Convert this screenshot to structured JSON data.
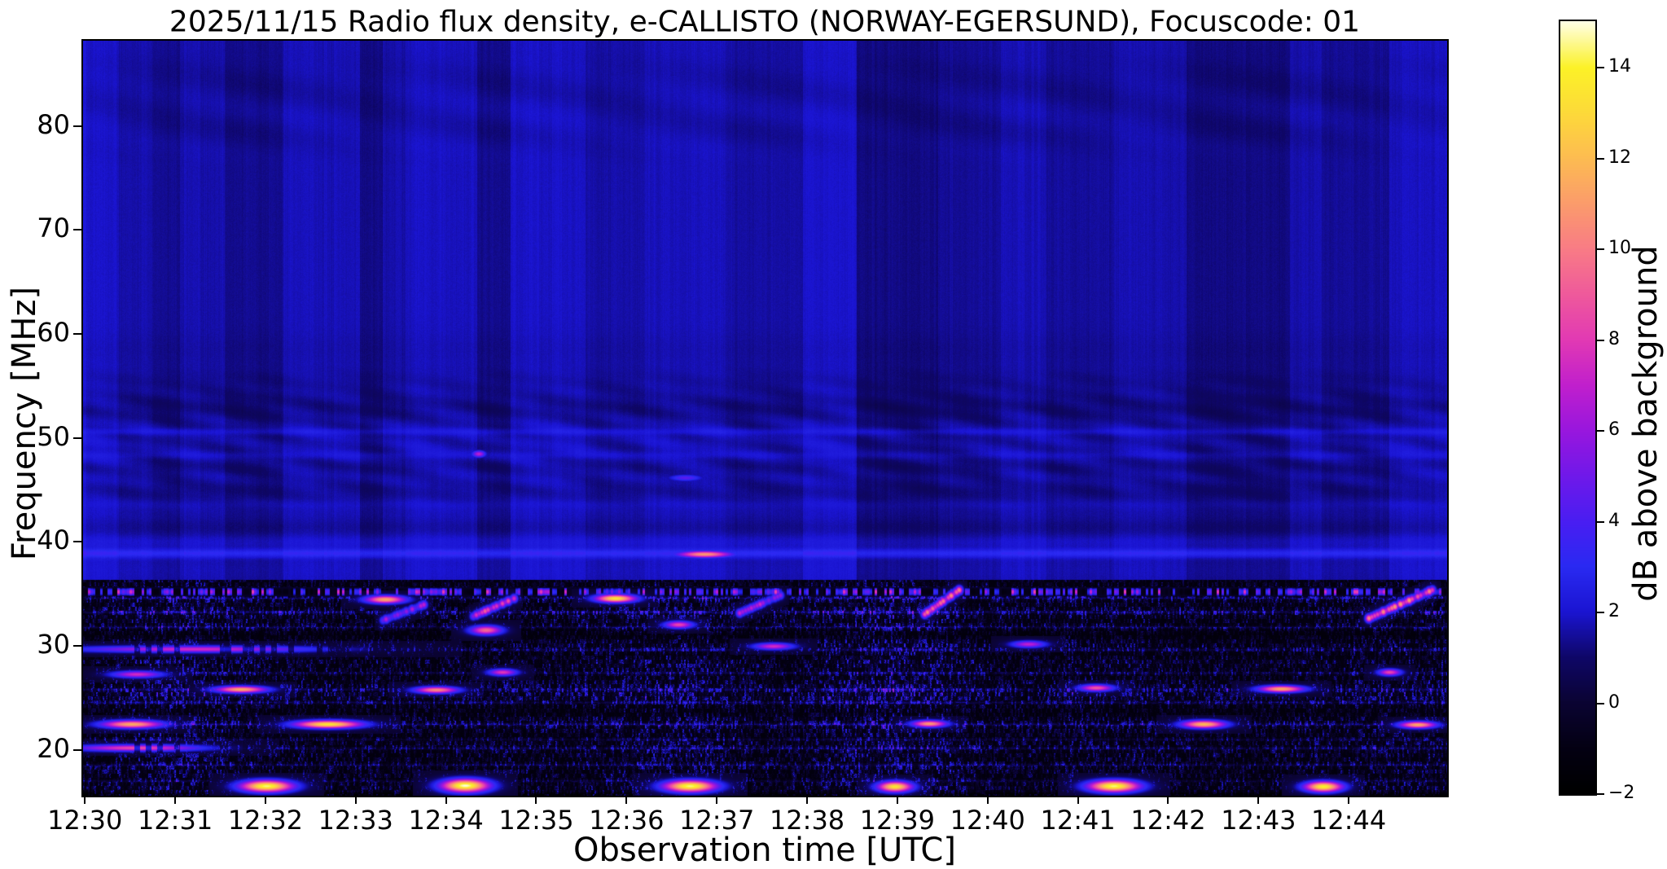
{
  "chart_data": {
    "type": "heatmap",
    "title": "2025/11/15  Radio flux density, e-CALLISTO (NORWAY-EGERSUND), Focuscode: 01",
    "xlabel": "Observation time [UTC]",
    "ylabel": "Frequency [MHz]",
    "colorbar_label": "dB above background",
    "x_start_label": "12:30",
    "x_range_minutes": [
      -0.02,
      15.09
    ],
    "x_ticks": [
      {
        "minute": 0,
        "label": "12:30"
      },
      {
        "minute": 1,
        "label": "12:31"
      },
      {
        "minute": 2,
        "label": "12:32"
      },
      {
        "minute": 3,
        "label": "12:33"
      },
      {
        "minute": 4,
        "label": "12:34"
      },
      {
        "minute": 5,
        "label": "12:35"
      },
      {
        "minute": 6,
        "label": "12:36"
      },
      {
        "minute": 7,
        "label": "12:37"
      },
      {
        "minute": 8,
        "label": "12:38"
      },
      {
        "minute": 9,
        "label": "12:39"
      },
      {
        "minute": 10,
        "label": "12:40"
      },
      {
        "minute": 11,
        "label": "12:41"
      },
      {
        "minute": 12,
        "label": "12:42"
      },
      {
        "minute": 13,
        "label": "12:43"
      },
      {
        "minute": 14,
        "label": "12:44"
      }
    ],
    "y_range_mhz": [
      15.6,
      88.2
    ],
    "y_ticks": [
      {
        "mhz": 80,
        "label": "80"
      },
      {
        "mhz": 70,
        "label": "70"
      },
      {
        "mhz": 60,
        "label": "60"
      },
      {
        "mhz": 50,
        "label": "50"
      },
      {
        "mhz": 40,
        "label": "40"
      },
      {
        "mhz": 30,
        "label": "30"
      },
      {
        "mhz": 20,
        "label": "20"
      }
    ],
    "colorbar_range": [
      -2,
      15.03
    ],
    "colorbar_ticks": [
      {
        "value": 14,
        "label": "14"
      },
      {
        "value": 12,
        "label": "12"
      },
      {
        "value": 10,
        "label": "10"
      },
      {
        "value": 8,
        "label": "8"
      },
      {
        "value": 6,
        "label": "6"
      },
      {
        "value": 4,
        "label": "4"
      },
      {
        "value": 2,
        "label": "2"
      },
      {
        "value": 0,
        "label": "0"
      },
      {
        "value": -2,
        "label": "−2"
      }
    ],
    "colormap_stops": [
      [
        -2,
        "#000000"
      ],
      [
        -1,
        "#040113"
      ],
      [
        0,
        "#0b0433"
      ],
      [
        1,
        "#0f0768"
      ],
      [
        2,
        "#1b15d2"
      ],
      [
        3,
        "#2a2af2"
      ],
      [
        4,
        "#4a1ef2"
      ],
      [
        5,
        "#7019ea"
      ],
      [
        6,
        "#9917de"
      ],
      [
        7,
        "#c120cd"
      ],
      [
        8,
        "#e23ab4"
      ],
      [
        9,
        "#ef5a9c"
      ],
      [
        10,
        "#f97c86"
      ],
      [
        11,
        "#fb9c6c"
      ],
      [
        12,
        "#fdbc52"
      ],
      [
        13,
        "#fdda3a"
      ],
      [
        14,
        "#fcf228"
      ],
      [
        15.03,
        "#ffffe8"
      ]
    ],
    "texture": {
      "upper_base_db": 1.85,
      "upper_lower_boundary_mhz": 36.35,
      "vertical_bands": [
        [
          -0.02,
          0.35,
          1.06
        ],
        [
          0.35,
          0.75,
          0.9
        ],
        [
          0.75,
          1.05,
          0.76
        ],
        [
          1.05,
          1.55,
          0.9
        ],
        [
          1.55,
          2.2,
          0.74
        ],
        [
          2.2,
          3.05,
          0.95
        ],
        [
          3.05,
          3.3,
          0.7
        ],
        [
          3.3,
          3.55,
          0.88
        ],
        [
          3.55,
          4.35,
          1.0
        ],
        [
          4.35,
          4.72,
          0.74
        ],
        [
          4.72,
          5.55,
          1.02
        ],
        [
          5.55,
          6.2,
          0.86
        ],
        [
          6.2,
          7.1,
          0.97
        ],
        [
          7.1,
          7.95,
          0.84
        ],
        [
          7.95,
          8.55,
          1.05
        ],
        [
          8.55,
          9.45,
          0.68
        ],
        [
          9.45,
          10.15,
          0.78
        ],
        [
          10.15,
          10.65,
          0.94
        ],
        [
          10.65,
          11.4,
          0.8
        ],
        [
          11.4,
          12.2,
          0.9
        ],
        [
          12.2,
          13.35,
          0.68
        ],
        [
          13.35,
          13.7,
          0.9
        ],
        [
          13.7,
          14.45,
          0.78
        ],
        [
          14.45,
          15.09,
          1.0
        ]
      ],
      "h_lines": [
        [
          38.9,
          0.3,
          1.5
        ],
        [
          40.0,
          0.45,
          0.38
        ],
        [
          41.4,
          0.6,
          -0.28
        ],
        [
          43.6,
          0.3,
          0.18
        ],
        [
          44.9,
          0.7,
          -0.3
        ],
        [
          47.2,
          0.5,
          -0.28
        ],
        [
          48.35,
          0.25,
          0.32
        ],
        [
          50.6,
          0.22,
          0.55
        ],
        [
          52.9,
          1.0,
          -0.42
        ],
        [
          55.5,
          0.8,
          -0.2
        ],
        [
          58.5,
          1.2,
          -0.12
        ],
        [
          37.3,
          0.8,
          0.15
        ],
        [
          84.0,
          1.8,
          -0.15
        ],
        [
          79.5,
          1.0,
          -0.1
        ]
      ],
      "chevron": {
        "f_min": 42.5,
        "f_max": 57.0,
        "amp": 0.34
      },
      "top_arcs": {
        "f_min": 76.0,
        "f_max": 87.0,
        "amp": 0.14
      },
      "dotted_line": {
        "f": 35.2,
        "halfwidth": 0.42
      },
      "row_activity": [
        [
          36.2,
          0.45
        ],
        [
          35.6,
          0.5
        ],
        [
          34.6,
          0.72
        ],
        [
          33.9,
          0.5
        ],
        [
          33.2,
          0.78
        ],
        [
          32.5,
          0.5
        ],
        [
          31.8,
          0.62
        ],
        [
          31.1,
          0.28
        ],
        [
          30.4,
          0.52
        ],
        [
          29.8,
          0.68
        ],
        [
          29.1,
          0.45
        ],
        [
          28.4,
          0.6
        ],
        [
          27.7,
          0.58
        ],
        [
          27.0,
          0.5
        ],
        [
          26.3,
          0.66
        ],
        [
          25.6,
          0.78
        ],
        [
          24.9,
          0.72
        ],
        [
          24.2,
          0.5
        ],
        [
          23.5,
          0.38
        ],
        [
          22.9,
          0.62
        ],
        [
          22.4,
          0.72
        ],
        [
          21.8,
          0.52
        ],
        [
          21.1,
          0.48
        ],
        [
          20.4,
          0.62
        ],
        [
          19.8,
          0.58
        ],
        [
          19.1,
          0.52
        ],
        [
          18.4,
          0.58
        ],
        [
          17.7,
          0.52
        ],
        [
          17.0,
          0.5
        ],
        [
          16.4,
          0.62
        ],
        [
          15.7,
          0.45
        ]
      ],
      "blue_lines": [
        [
          34.6,
          3.0
        ],
        [
          33.25,
          3.2
        ],
        [
          31.8,
          2.4
        ],
        [
          29.62,
          2.6
        ],
        [
          27.4,
          2.4
        ],
        [
          25.8,
          2.6
        ],
        [
          24.55,
          3.0
        ],
        [
          22.45,
          3.0
        ],
        [
          21.0,
          2.0
        ],
        [
          20.15,
          2.6
        ],
        [
          18.55,
          2.4
        ],
        [
          17.0,
          2.2
        ]
      ]
    },
    "bursts": [
      {
        "t0": 1.78,
        "t1": 2.24,
        "f0": 16.1,
        "f1": 17.0,
        "peak": 14.5
      },
      {
        "t0": 4.0,
        "t1": 4.42,
        "f0": 16.1,
        "f1": 17.1,
        "peak": 15.0
      },
      {
        "t0": 6.47,
        "t1": 6.93,
        "f0": 16.1,
        "f1": 17.0,
        "peak": 14.5
      },
      {
        "t0": 8.82,
        "t1": 9.12,
        "f0": 16.1,
        "f1": 16.9,
        "peak": 13.5
      },
      {
        "t0": 11.17,
        "t1": 11.62,
        "f0": 16.1,
        "f1": 17.0,
        "peak": 14.5
      },
      {
        "t0": 13.55,
        "t1": 13.88,
        "f0": 16.1,
        "f1": 16.9,
        "peak": 14.0
      },
      {
        "t0": 6.62,
        "t1": 7.1,
        "f0": 38.6,
        "f1": 39.1,
        "peak": 11.0
      },
      {
        "t0": 5.7,
        "t1": 6.05,
        "f0": 34.3,
        "f1": 34.9,
        "peak": 13.5
      },
      {
        "t0": 3.15,
        "t1": 3.5,
        "f0": 34.2,
        "f1": 34.8,
        "peak": 11.5
      },
      {
        "t0": 1.5,
        "t1": 1.95,
        "f0": 25.6,
        "f1": 26.1,
        "peak": 11.5
      },
      {
        "t0": 3.7,
        "t1": 4.08,
        "f0": 25.6,
        "f1": 26.0,
        "peak": 10.5
      },
      {
        "t0": 0.25,
        "t1": 0.78,
        "f0": 22.2,
        "f1": 22.8,
        "peak": 11.5
      },
      {
        "t0": 2.4,
        "t1": 2.98,
        "f0": 22.2,
        "f1": 22.8,
        "peak": 13.5
      },
      {
        "t0": 0.0,
        "t1": 1.15,
        "f0": 20.0,
        "f1": 20.45,
        "peak": 8.5,
        "dash": true
      },
      {
        "t0": 0.15,
        "t1": 2.3,
        "f0": 29.5,
        "f1": 29.95,
        "peak": 7.5,
        "dash": true
      },
      {
        "t0": 4.3,
        "t1": 4.58,
        "f0": 31.2,
        "f1": 31.9,
        "peak": 9.5
      },
      {
        "t0": 6.45,
        "t1": 6.7,
        "f0": 31.8,
        "f1": 32.35,
        "peak": 8.5
      },
      {
        "t0": 9.2,
        "t1": 9.5,
        "f0": 22.3,
        "f1": 22.8,
        "peak": 11.0
      },
      {
        "t0": 12.2,
        "t1": 12.58,
        "f0": 22.2,
        "f1": 22.8,
        "peak": 12.0
      },
      {
        "t0": 14.6,
        "t1": 14.92,
        "f0": 22.2,
        "f1": 22.7,
        "peak": 11.5
      },
      {
        "t0": 13.05,
        "t1": 13.45,
        "f0": 25.7,
        "f1": 26.1,
        "peak": 11.5
      },
      {
        "t0": 11.05,
        "t1": 11.35,
        "f0": 25.8,
        "f1": 26.2,
        "peak": 9.0
      },
      {
        "t0": 14.35,
        "t1": 14.55,
        "f0": 27.3,
        "f1": 27.7,
        "peak": 8.5
      },
      {
        "t0": 7.45,
        "t1": 7.8,
        "f0": 29.8,
        "f1": 30.2,
        "peak": 7.5
      },
      {
        "t0": 10.3,
        "t1": 10.6,
        "f0": 30.0,
        "f1": 30.4,
        "peak": 7.0
      },
      {
        "t0": 0.35,
        "t1": 0.8,
        "f0": 27.1,
        "f1": 27.5,
        "peak": 7.5
      },
      {
        "t0": 4.5,
        "t1": 4.75,
        "f0": 27.3,
        "f1": 27.7,
        "peak": 8.0
      },
      {
        "t0": 4.3,
        "t1": 4.75,
        "f0": 32.9,
        "f1": 34.6,
        "peak": 9.0,
        "drift": true
      },
      {
        "t0": 7.25,
        "t1": 7.7,
        "f0": 33.2,
        "f1": 34.9,
        "peak": 7.5,
        "drift": true
      },
      {
        "t0": 9.3,
        "t1": 9.68,
        "f0": 33.1,
        "f1": 35.4,
        "peak": 10.5,
        "drift": true
      },
      {
        "t0": 14.22,
        "t1": 14.92,
        "f0": 32.7,
        "f1": 35.4,
        "peak": 11.0,
        "drift": true
      },
      {
        "t0": 3.3,
        "t1": 3.75,
        "f0": 32.5,
        "f1": 34.0,
        "peak": 7.0,
        "drift": true
      },
      {
        "t0": 4.3,
        "t1": 4.42,
        "f0": 48.3,
        "f1": 48.7,
        "peak": 7.0
      },
      {
        "t0": 6.5,
        "t1": 6.8,
        "f0": 46.0,
        "f1": 46.4,
        "peak": 4.5
      }
    ]
  }
}
